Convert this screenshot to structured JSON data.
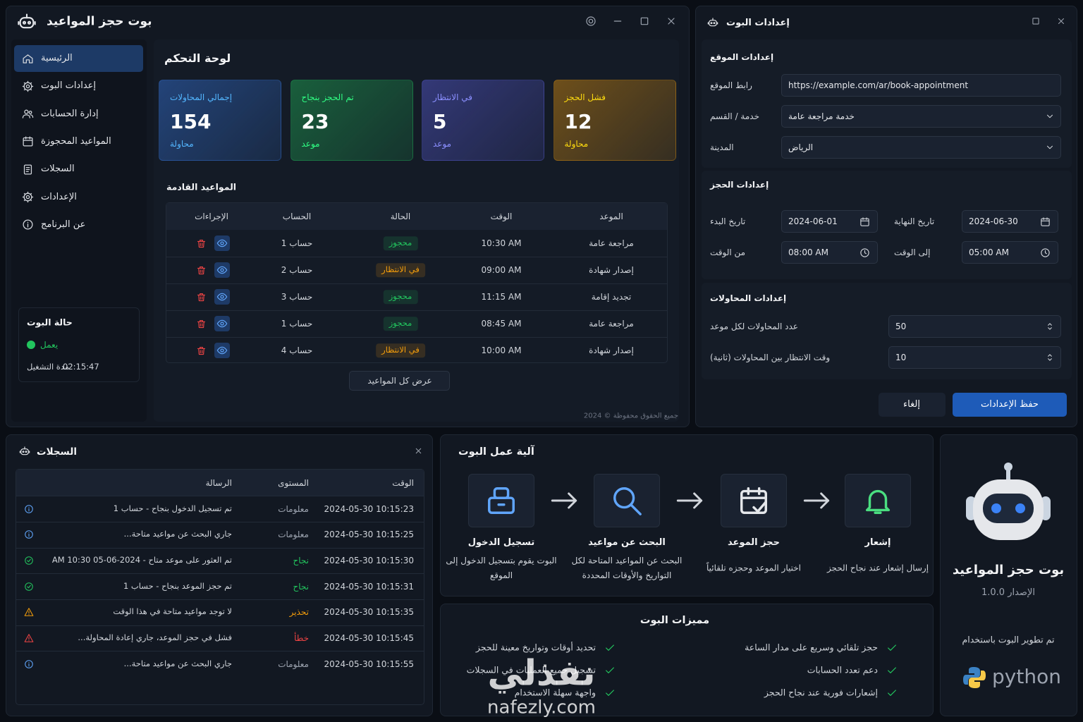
{
  "main_window": {
    "title": "بوت حجز المواعيد",
    "nav": [
      {
        "label": "الرئيسية"
      },
      {
        "label": "إعدادات البوت"
      },
      {
        "label": "إدارة الحسابات"
      },
      {
        "label": "المواعيد المحجوزة"
      },
      {
        "label": "السجلات"
      },
      {
        "label": "الإعدادات"
      },
      {
        "label": "عن البرنامج"
      }
    ],
    "active_nav": 0,
    "status": {
      "title": "حالة البوت",
      "state": "يعمل",
      "uptime_label": "مدة التشغيل",
      "uptime": "02:15:47"
    },
    "dashboard": {
      "title": "لوحة التحكم",
      "stats": [
        {
          "label": "إجمالي المحاولات",
          "value": 154,
          "unit": "محاولة",
          "color": "#3b82f6"
        },
        {
          "label": "تم الحجز بنجاح",
          "value": 23,
          "unit": "موعد",
          "color": "#22c55e"
        },
        {
          "label": "في الانتظار",
          "value": 5,
          "unit": "موعد",
          "color": "#6366f1"
        },
        {
          "label": "فشل الحجز",
          "value": 12,
          "unit": "محاولة",
          "color": "#f59e0b"
        }
      ],
      "upcoming": {
        "title": "المواعيد القادمة",
        "columns": [
          "الموعد",
          "الوقت",
          "الحالة",
          "الحساب",
          "الإجراءات"
        ],
        "rows": [
          {
            "appointment": "مراجعة عامة",
            "time": "10:30 AM",
            "status": "محجوز",
            "status_color": "#22c55e",
            "account": "حساب 1"
          },
          {
            "appointment": "إصدار شهادة",
            "time": "09:00 AM",
            "status": "في الانتظار",
            "status_color": "#f59e0b",
            "account": "حساب 2"
          },
          {
            "appointment": "تجديد إقامة",
            "time": "11:15 AM",
            "status": "محجوز",
            "status_color": "#22c55e",
            "account": "حساب 3"
          },
          {
            "appointment": "مراجعة عامة",
            "time": "08:45 AM",
            "status": "محجوز",
            "status_color": "#22c55e",
            "account": "حساب 1"
          },
          {
            "appointment": "إصدار شهادة",
            "time": "10:00 AM",
            "status": "في الانتظار",
            "status_color": "#f59e0b",
            "account": "حساب 4"
          }
        ],
        "view_all": "عرض كل المواعيد"
      },
      "footer": "جميع الحقوق محفوظة © 2024"
    }
  },
  "settings_window": {
    "title": "إعدادات البوت",
    "site": {
      "title": "إعدادات الموقع",
      "url": {
        "label": "رابط الموقع",
        "value": "https://example.com/ar/book-appointment"
      },
      "service": {
        "label": "خدمة / القسم",
        "value": "خدمة مراجعة عامة"
      },
      "city": {
        "label": "المدينة",
        "value": "الرياض"
      }
    },
    "booking": {
      "title": "إعدادات الحجز",
      "start_date": {
        "label": "تاريخ البدء",
        "value": "2024-06-01"
      },
      "end_date": {
        "label": "تاريخ النهاية",
        "value": "2024-06-30"
      },
      "from_time": {
        "label": "من الوقت",
        "value": "08:00 AM"
      },
      "to_time": {
        "label": "إلى الوقت",
        "value": "05:00 AM"
      }
    },
    "attempts": {
      "title": "إعدادات المحاولات",
      "per_appointment": {
        "label": "عدد المحاولات لكل موعد",
        "value": 50
      },
      "wait": {
        "label": "وقت الانتظار بين المحاولات (ثانية)",
        "value": 10
      }
    },
    "save": "حفظ الإعدادات",
    "cancel": "إلغاء"
  },
  "logs": {
    "title": "السجلات",
    "columns": [
      "الوقت",
      "المستوى",
      "الرسالة"
    ],
    "rows": [
      {
        "time": "2024-05-30 10:15:23",
        "level": "معلومات",
        "message": "تم تسجيل الدخول بنجاح - حساب 1",
        "color": "#9ca3af"
      },
      {
        "time": "2024-05-30 10:15:25",
        "level": "معلومات",
        "message": "جاري البحث عن مواعيد متاحة...",
        "color": "#9ca3af"
      },
      {
        "time": "2024-05-30 10:15:30",
        "level": "نجاح",
        "message": "تم العثور على موعد متاح - 2024-06-05 10:30 AM",
        "color": "#22c55e"
      },
      {
        "time": "2024-05-30 10:15:31",
        "level": "نجاح",
        "message": "تم حجز الموعد بنجاح - حساب 1",
        "color": "#22c55e"
      },
      {
        "time": "2024-05-30 10:15:35",
        "level": "تحذير",
        "message": "لا توجد مواعيد متاحة في هذا الوقت",
        "color": "#f59e0b"
      },
      {
        "time": "2024-05-30 10:15:45",
        "level": "خطأ",
        "message": "فشل في حجز الموعد، جاري إعادة المحاولة...",
        "color": "#ef4444"
      },
      {
        "time": "2024-05-30 10:15:55",
        "level": "معلومات",
        "message": "جاري البحث عن مواعيد متاحة...",
        "color": "#9ca3af"
      }
    ]
  },
  "how_it_works": {
    "title": "آلية عمل البوت",
    "steps": [
      {
        "title": "تسجيل الدخول",
        "description": "البوت يقوم بتسجيل الدخول إلى الموقع"
      },
      {
        "title": "البحث عن مواعيد",
        "description": "البحث عن المواعيد المتاحة لكل التواريخ والأوقات المحددة"
      },
      {
        "title": "حجز الموعد",
        "description": "اختيار الموعد وحجزه تلقائياً"
      },
      {
        "title": "إشعار",
        "description": "إرسال إشعار عند نجاح الحجز"
      }
    ]
  },
  "features": {
    "title": "مميزات البوت",
    "items": [
      "حجز تلقائي وسريع على مدار الساعة",
      "دعم تعدد الحسابات",
      "إشعارات فورية عند نجاح الحجز",
      "تحديد أوقات وتواريخ معينة للحجز",
      "تسجيل جميع العمليات في السجلات",
      "واجهة سهلة الاستخدام"
    ]
  },
  "about": {
    "name": "بوت حجز المواعيد",
    "version": "الإصدار 1.0.0",
    "built_with": "تم تطوير البوت باستخدام",
    "technology": "python"
  },
  "watermark": {
    "text": "نفذلي",
    "url": "nafezly.com"
  }
}
